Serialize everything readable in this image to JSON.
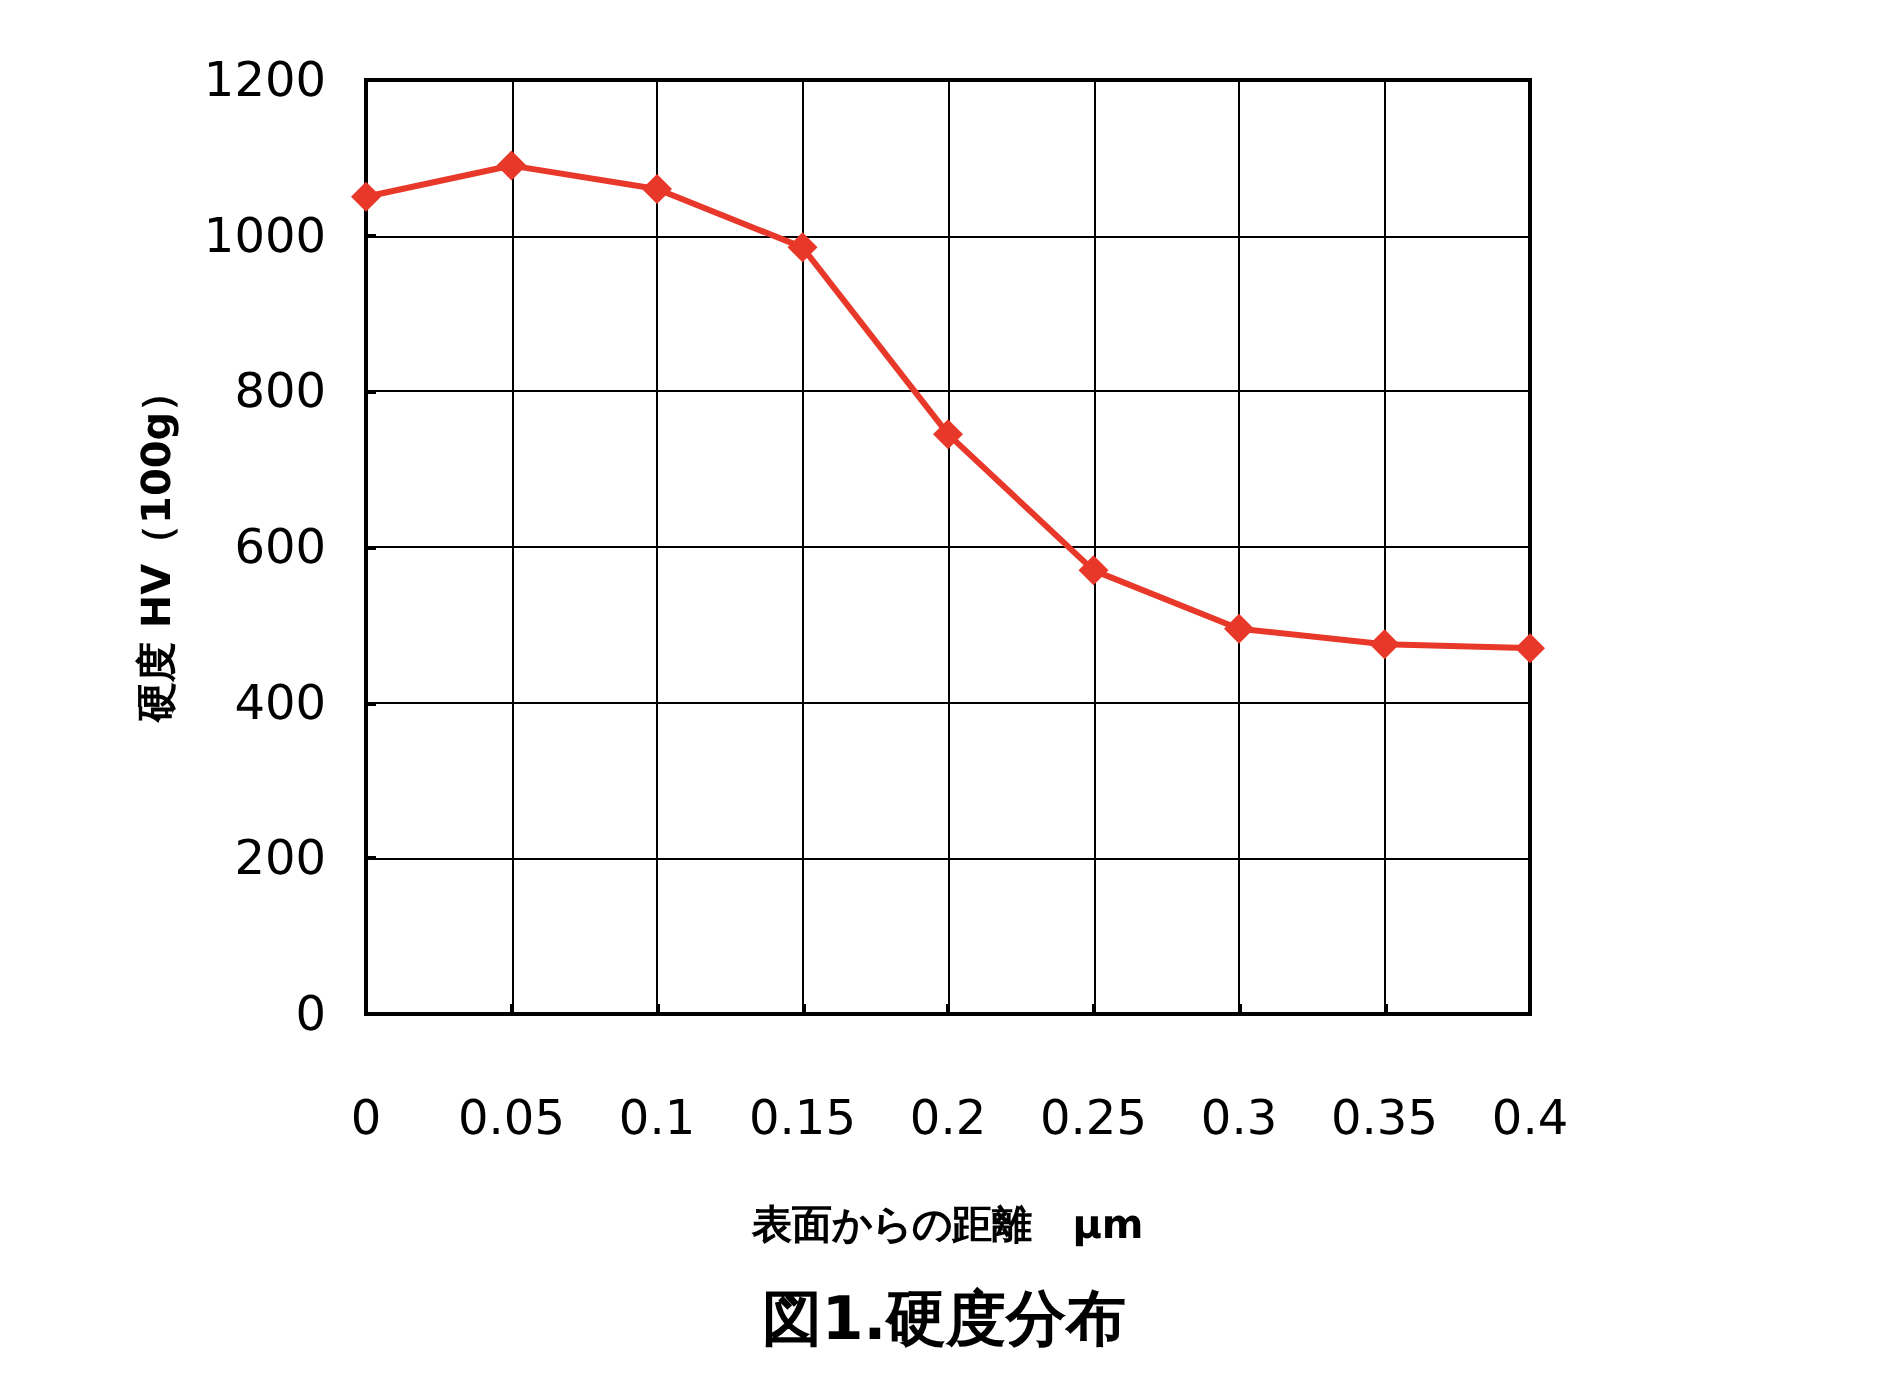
{
  "chart_data": {
    "type": "line",
    "title": "図1.硬度分布",
    "xlabel": "表面からの距離　μm",
    "ylabel": "硬度 HV（100g）",
    "x": [
      0,
      0.05,
      0.1,
      0.15,
      0.2,
      0.25,
      0.3,
      0.35,
      0.4
    ],
    "series": [
      {
        "color": "#e8382a",
        "values": [
          1050,
          1090,
          1060,
          985,
          745,
          570,
          495,
          475,
          470
        ]
      }
    ],
    "xlim": [
      0,
      0.4
    ],
    "xticks": [
      0,
      0.05,
      0.1,
      0.15,
      0.2,
      0.25,
      0.3,
      0.35,
      0.4
    ],
    "ylim": [
      0,
      1200
    ],
    "yticks": [
      0,
      200,
      400,
      600,
      800,
      1000,
      1200
    ],
    "grid": true,
    "marker": "diamond",
    "line_style": "solid"
  }
}
